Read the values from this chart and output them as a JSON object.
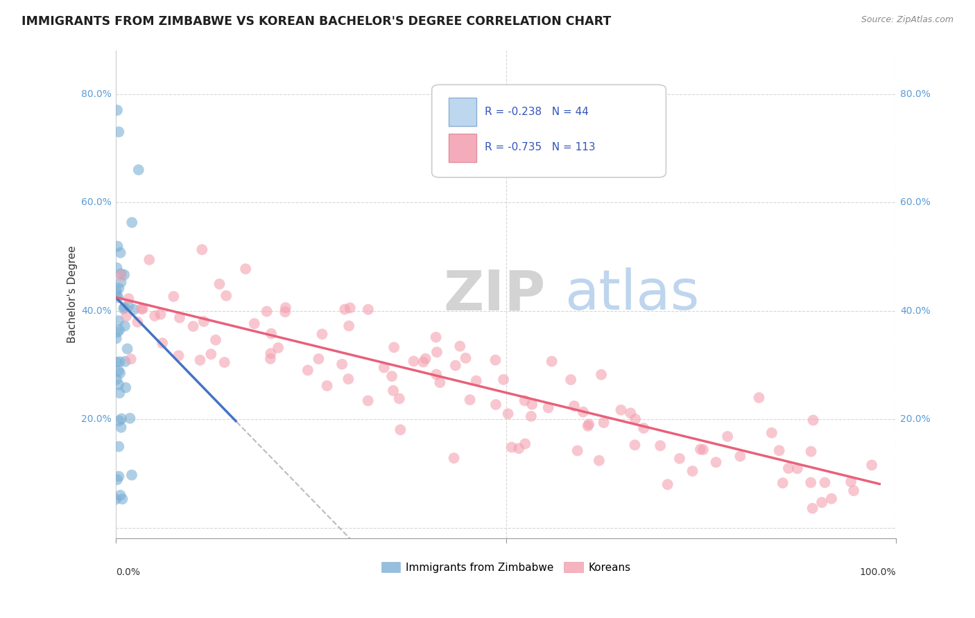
{
  "title": "IMMIGRANTS FROM ZIMBABWE VS KOREAN BACHELOR'S DEGREE CORRELATION CHART",
  "source": "Source: ZipAtlas.com",
  "ylabel": "Bachelor's Degree",
  "legend_label1": "Immigrants from Zimbabwe",
  "legend_label2": "Koreans",
  "r1": -0.238,
  "n1": 44,
  "r2": -0.735,
  "n2": 113,
  "color_blue": "#7BAFD4",
  "color_pink": "#F4A0B0",
  "color_blue_line": "#4472C4",
  "color_pink_line": "#E8607A",
  "color_legend_blue_fill": "#BDD7EE",
  "color_legend_pink_fill": "#F4ACBB",
  "background_color": "#FFFFFF",
  "grid_color": "#CCCCCC",
  "axis_label_color": "#5B9BD5",
  "title_fontsize": 12.5,
  "source_fontsize": 9,
  "watermark_zip": "ZIP",
  "watermark_atlas": "atlas",
  "figsize": [
    14.06,
    8.92
  ],
  "dpi": 100,
  "xlim": [
    0.0,
    1.0
  ],
  "ylim": [
    -0.02,
    0.88
  ],
  "blue_line_x0": 0.0,
  "blue_line_y0": 0.425,
  "blue_line_x1": 0.155,
  "blue_line_y1": 0.195,
  "pink_line_x0": 0.0,
  "pink_line_y0": 0.425,
  "pink_line_x1": 0.98,
  "pink_line_y1": 0.08
}
